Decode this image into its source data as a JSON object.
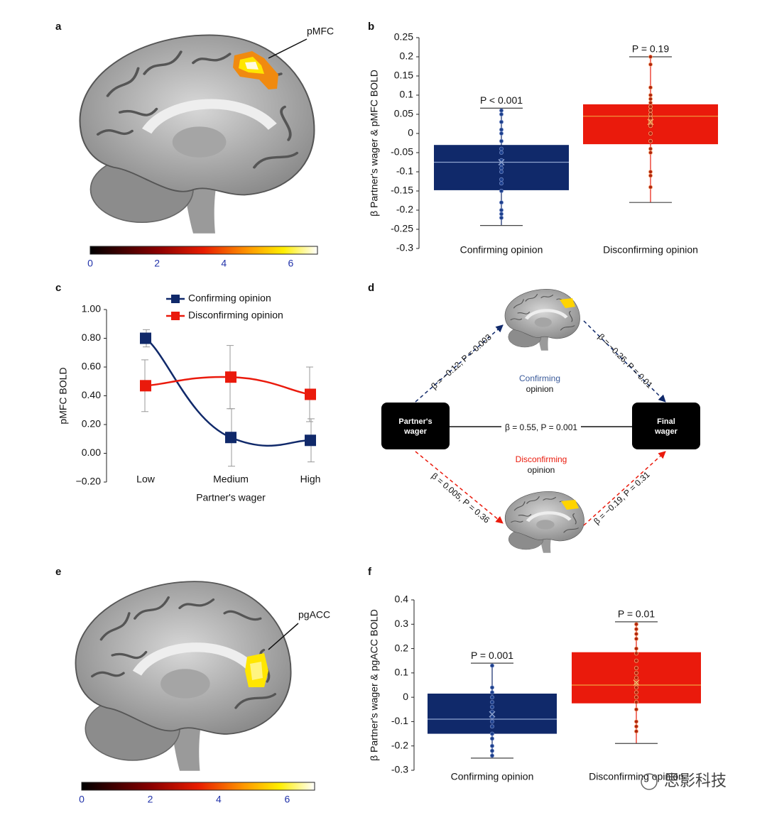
{
  "brain_maps": [
    {
      "panel": "a",
      "region": "pMFC",
      "colorbar": {
        "lim": [
          0,
          6.8
        ],
        "ticks": [
          0,
          2,
          4,
          6
        ]
      }
    },
    {
      "panel": "e",
      "region": "pgACC",
      "colorbar": {
        "lim": [
          0,
          6.8
        ],
        "ticks": [
          0,
          2,
          4,
          6
        ]
      }
    }
  ],
  "chart_data": [
    {
      "type": "box",
      "panel": "b",
      "ylabel": "β Partner's wager & pMFC BOLD",
      "categories": [
        "Confirming opinion",
        "Disconfirming opinion"
      ],
      "ylim": [
        -0.3,
        0.25
      ],
      "yticks": [
        -0.3,
        -0.25,
        -0.2,
        -0.15,
        -0.1,
        -0.05,
        0,
        0.05,
        0.1,
        0.15,
        0.2,
        0.25
      ],
      "boxes": [
        {
          "color": "#10296a",
          "min": -0.24,
          "q1": -0.148,
          "median": -0.075,
          "q3": -0.03,
          "max": 0.066,
          "mean": -0.075,
          "annotation": "P < 0.001",
          "points": [
            0.06,
            0.05,
            0.03,
            0.01,
            0.0,
            -0.02,
            -0.04,
            -0.05,
            -0.07,
            -0.08,
            -0.09,
            -0.1,
            -0.12,
            -0.13,
            -0.15,
            -0.18,
            -0.2,
            -0.21,
            -0.22
          ]
        },
        {
          "color": "#ea1a0c",
          "min": -0.18,
          "q1": -0.028,
          "median": 0.045,
          "q3": 0.076,
          "max": 0.2,
          "mean": 0.03,
          "annotation": "P = 0.19",
          "points": [
            0.2,
            0.18,
            0.12,
            0.1,
            0.09,
            0.08,
            0.07,
            0.06,
            0.05,
            0.04,
            0.03,
            0.02,
            0.0,
            -0.02,
            -0.04,
            -0.05,
            -0.1,
            -0.11,
            -0.14
          ]
        }
      ]
    },
    {
      "type": "line",
      "panel": "c",
      "xlabel": "Partner's wager",
      "ylabel": "pMFC BOLD",
      "categories": [
        "Low",
        "Medium",
        "High"
      ],
      "ylim": [
        -0.2,
        1.0
      ],
      "yticks": [
        {
          "value": -0.2,
          "label": "−0.20"
        },
        {
          "value": 0,
          "label": "0.00"
        },
        {
          "value": 0.2,
          "label": "0.20"
        },
        {
          "value": 0.4,
          "label": "0.40"
        },
        {
          "value": 0.6,
          "label": "0.60"
        },
        {
          "value": 0.8,
          "label": "0.80"
        },
        {
          "value": 1.0,
          "label": "1.00"
        }
      ],
      "series": [
        {
          "name": "Confirming opinion",
          "color": "#10296a",
          "values": [
            0.8,
            0.11,
            0.09
          ],
          "errors": [
            0.06,
            0.2,
            0.15
          ]
        },
        {
          "name": "Disconfirming opinion",
          "color": "#ea1a0c",
          "values": [
            0.47,
            0.53,
            0.41
          ],
          "errors": [
            0.18,
            0.22,
            0.19
          ]
        }
      ]
    },
    {
      "type": "box",
      "panel": "f",
      "ylabel": "β Partner's wager & pgACC BOLD",
      "categories": [
        "Confirming opinion",
        "Disconfirming opinion"
      ],
      "ylim": [
        -0.3,
        0.4
      ],
      "yticks": [
        -0.3,
        -0.2,
        -0.1,
        0,
        0.1,
        0.2,
        0.3,
        0.4
      ],
      "boxes": [
        {
          "color": "#10296a",
          "min": -0.25,
          "q1": -0.15,
          "median": -0.09,
          "q3": 0.015,
          "max": 0.14,
          "mean": -0.07,
          "annotation": "P = 0.001",
          "points": [
            0.13,
            0.04,
            0.02,
            0.0,
            -0.02,
            -0.04,
            -0.06,
            -0.08,
            -0.1,
            -0.12,
            -0.15,
            -0.17,
            -0.2,
            -0.22,
            -0.24
          ]
        },
        {
          "color": "#ea1a0c",
          "min": -0.19,
          "q1": -0.025,
          "median": 0.05,
          "q3": 0.185,
          "max": 0.31,
          "mean": 0.06,
          "annotation": "P = 0.01",
          "points": [
            0.3,
            0.28,
            0.26,
            0.24,
            0.2,
            0.18,
            0.15,
            0.12,
            0.1,
            0.08,
            0.06,
            0.04,
            0.02,
            0.0,
            -0.02,
            -0.05,
            -0.1,
            -0.12,
            -0.14
          ]
        }
      ]
    }
  ],
  "diagram": {
    "panel": "d",
    "nodes": [
      {
        "lines": [
          "Partner's",
          "wager"
        ]
      },
      {
        "lines": [
          "Final",
          "wager"
        ]
      }
    ],
    "paths": [
      {
        "label": "Confirming",
        "sub": "opinion"
      },
      {
        "label": "Disconfirming",
        "sub": "opinion"
      }
    ],
    "edges": [
      "β = −0.12, P = 0.003",
      "β = −0.26, P = 0.01",
      "β = 0.55, P = 0.001",
      "β = 0.005, P = 0.36",
      "β = −0.19, P = 0.31"
    ]
  },
  "watermark": "思影科技"
}
